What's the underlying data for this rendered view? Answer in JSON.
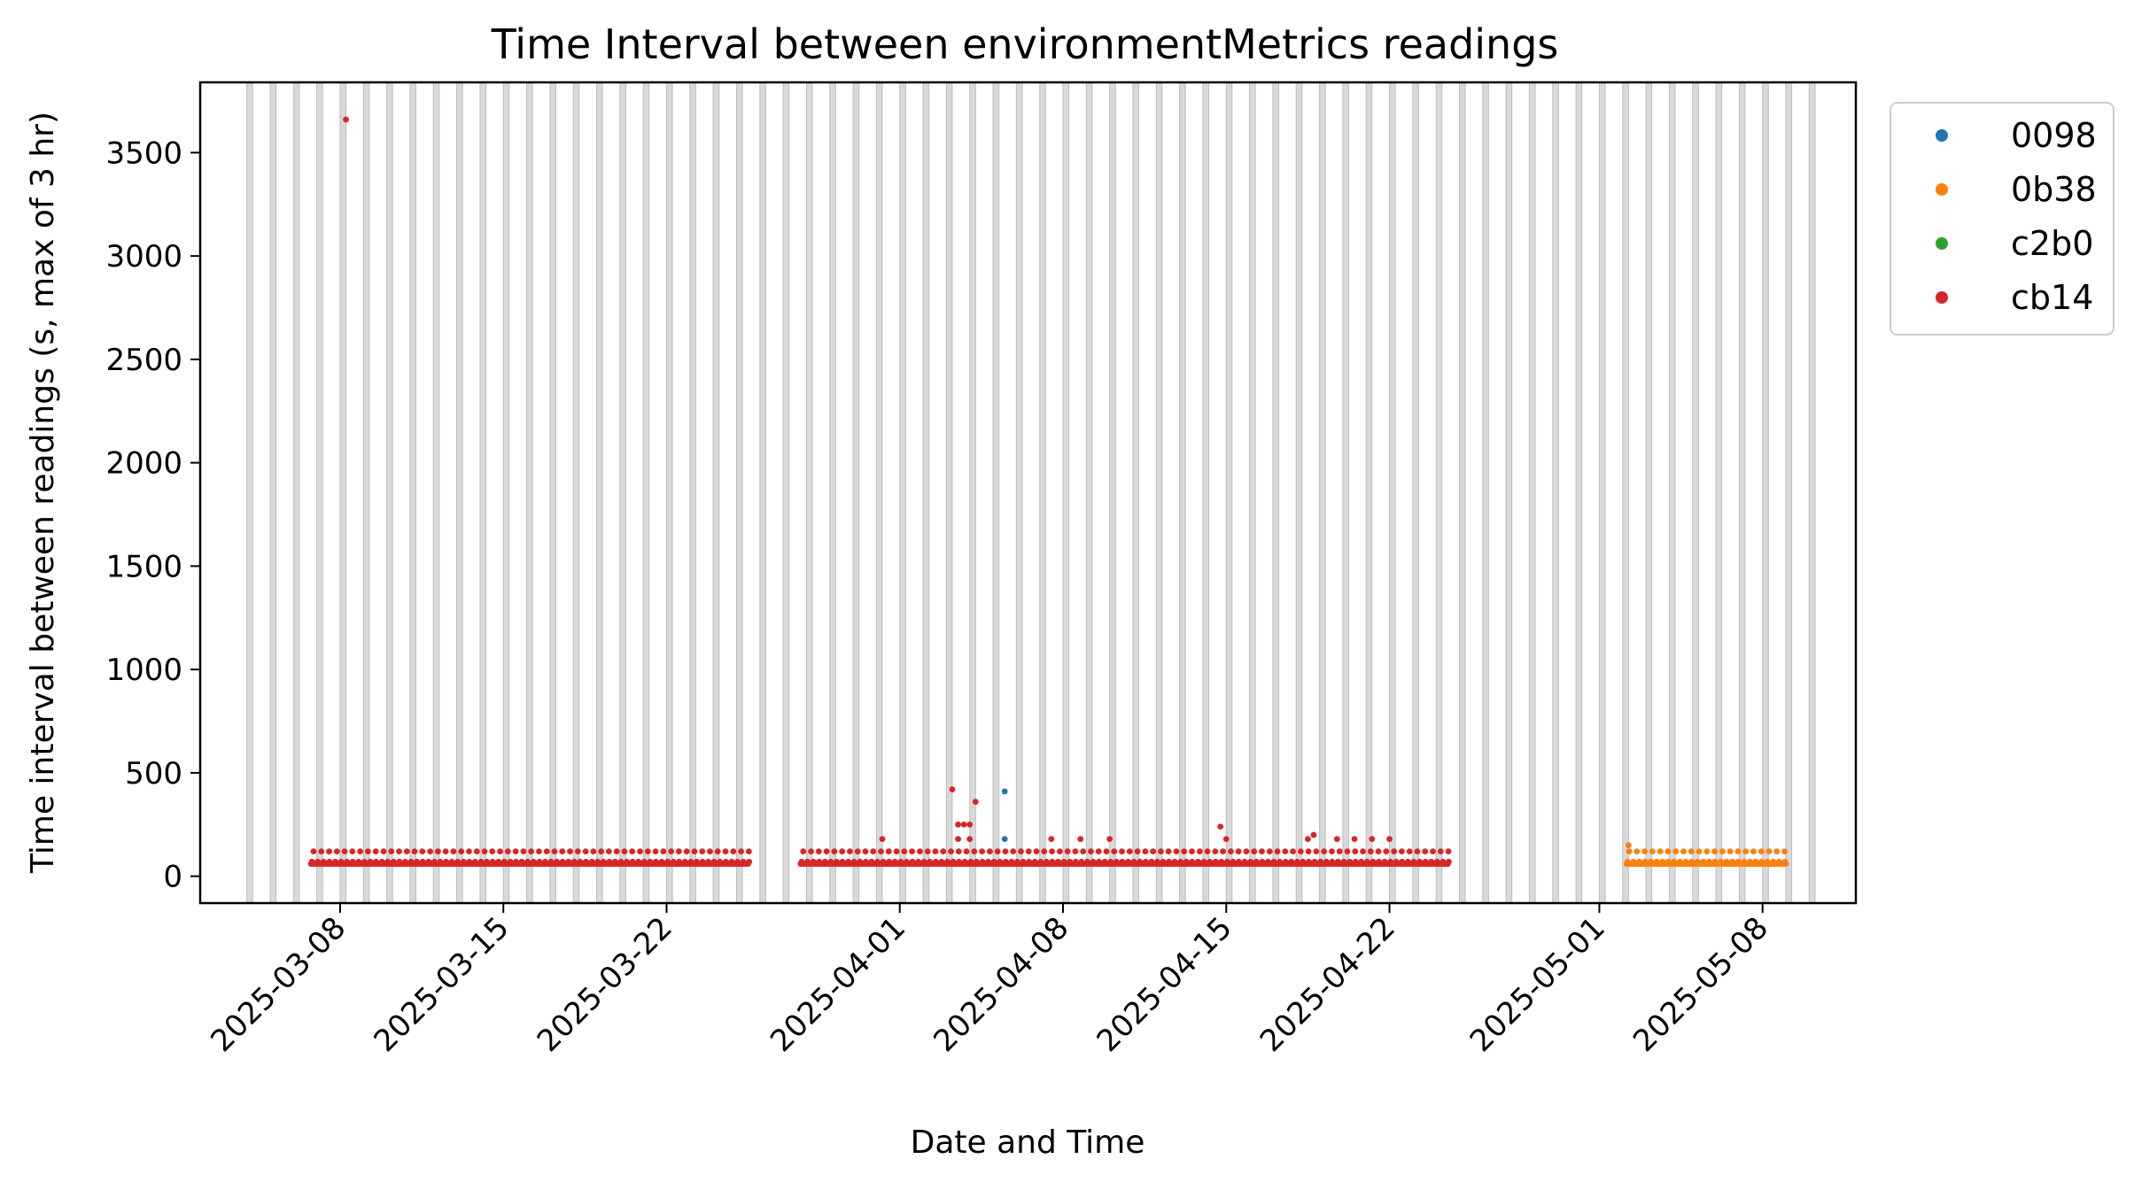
{
  "chart_data": {
    "type": "scatter",
    "title": "Time Interval between environmentMetrics readings",
    "xlabel": "Date and Time",
    "ylabel": "Time interval between readings (s, max of 3 hr)",
    "xlim": [
      "2025-03-02T00:00",
      "2025-05-12T00:00"
    ],
    "ylim": [
      -130,
      3840
    ],
    "yticks": [
      0,
      500,
      1000,
      1500,
      2000,
      2500,
      3000,
      3500
    ],
    "xticks": [
      "2025-03-08",
      "2025-03-15",
      "2025-03-22",
      "2025-04-01",
      "2025-04-08",
      "2025-04-15",
      "2025-04-22",
      "2025-05-01",
      "2025-05-08"
    ],
    "grid": false,
    "legend_position": "outside-top-right",
    "background_bands": {
      "color": "#d9d9d9",
      "description": "night-time periods shaded for every day",
      "start": "2025-03-04",
      "end": "2025-05-10",
      "daily_from_hour": 0,
      "daily_to_hour": 6
    },
    "series": [
      {
        "name": "0098",
        "color": "#1f77b4",
        "points": [
          [
            "2025-04-05T12:00",
            410
          ],
          [
            "2025-04-05T12:00",
            180
          ]
        ]
      },
      {
        "name": "0b38",
        "color": "#ff7f0e",
        "segments": [
          {
            "start": "2025-05-02T04:00",
            "end": "2025-05-09T00:00",
            "base": 60,
            "levels": [
              70,
              120
            ],
            "step_hours": 2
          }
        ],
        "points": [
          [
            "2025-05-02T06:00",
            150
          ]
        ]
      },
      {
        "name": "c2b0",
        "color": "#2ca02c",
        "points": []
      },
      {
        "name": "cb14",
        "color": "#d62728",
        "segments": [
          {
            "start": "2025-03-06T18:00",
            "end": "2025-03-25T12:00",
            "base": 60,
            "levels": [
              70,
              120
            ],
            "step_hours": 2
          },
          {
            "start": "2025-03-27T18:00",
            "end": "2025-04-24T12:00",
            "base": 60,
            "levels": [
              70,
              120
            ],
            "step_hours": 2
          }
        ],
        "points": [
          [
            "2025-03-08T06:00",
            3660
          ],
          [
            "2025-03-31T06:00",
            180
          ],
          [
            "2025-04-03T06:00",
            420
          ],
          [
            "2025-04-03T12:00",
            250
          ],
          [
            "2025-04-03T18:00",
            250
          ],
          [
            "2025-04-04T00:00",
            250
          ],
          [
            "2025-04-04T06:00",
            360
          ],
          [
            "2025-04-03T12:00",
            180
          ],
          [
            "2025-04-04T00:00",
            180
          ],
          [
            "2025-04-07T12:00",
            180
          ],
          [
            "2025-04-08T18:00",
            180
          ],
          [
            "2025-04-10T00:00",
            180
          ],
          [
            "2025-04-14T18:00",
            240
          ],
          [
            "2025-04-15T00:00",
            180
          ],
          [
            "2025-04-18T12:00",
            180
          ],
          [
            "2025-04-18T18:00",
            200
          ],
          [
            "2025-04-19T18:00",
            180
          ],
          [
            "2025-04-20T12:00",
            180
          ],
          [
            "2025-04-21T06:00",
            180
          ],
          [
            "2025-04-22T00:00",
            180
          ]
        ]
      }
    ]
  }
}
